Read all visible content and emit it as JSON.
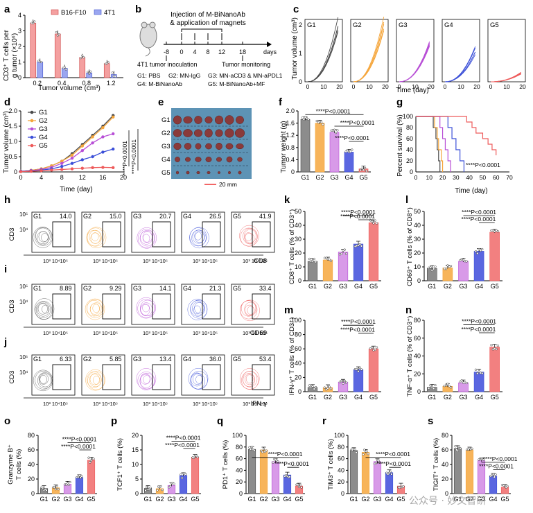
{
  "watermark": "公众号 · 妙文智研",
  "colors": {
    "G1": "#4a4a4a",
    "G2": "#f5a53a",
    "G3": "#b84fd6",
    "G4": "#3b4fd8",
    "G5": "#ee5a5a",
    "G1bar": "#8c8c8c",
    "G2bar": "#f7b45a",
    "G3bar": "#d89ae8",
    "G4bar": "#5a66e0",
    "G5bar": "#f28080",
    "B16": "#f4a0a0",
    "4T1": "#9aa6f0"
  },
  "panels": {
    "a": "a",
    "b": "b",
    "c": "c",
    "d": "d",
    "e": "e",
    "f": "f",
    "g": "g",
    "h": "h",
    "i": "i",
    "j": "j",
    "k": "k",
    "l": "l",
    "m": "m",
    "n": "n",
    "o": "o",
    "p": "p",
    "q": "q",
    "r": "r",
    "s": "s"
  },
  "a": {
    "ylabel1": "CD3⁺ T cells per",
    "ylabel2": "g tumor (×10⁶)",
    "xlabel": "Tumor volume (cm³)",
    "categories": [
      "0.2",
      "0.4",
      "0.8",
      "1.2"
    ],
    "yticks": [
      "0",
      "1",
      "2",
      "3",
      "4"
    ],
    "legend": [
      "B16-F10",
      "4T1"
    ],
    "series": [
      {
        "name": "B16-F10",
        "values": [
          3.5,
          2.8,
          1.3,
          0.9
        ]
      },
      {
        "name": "4T1",
        "values": [
          1.0,
          0.6,
          0.3,
          0.2
        ]
      }
    ]
  },
  "b": {
    "title1": "Injection of M-BiNanoAb",
    "title2": "& application of magnets",
    "ticks": [
      "-8",
      "0",
      "4",
      "8",
      "12",
      "18"
    ],
    "days": "days",
    "inoc": "4T1 tumor inoculation",
    "monitor": "Tumor monitoring",
    "legend1a": "G1: PBS",
    "legend1b": "G2: MN-IgG",
    "legend1c": "G3: MN-aCD3 & MN-aPDL1",
    "legend2a": "G4: M-BiNanoAb",
    "legend2b": "G5: M-BiNanoAb+MF"
  },
  "c": {
    "ylabel": "Tumor volume (cm³)",
    "xlabel": "Time (day)",
    "yticks": [
      "0",
      "1",
      "2"
    ],
    "xticks": [
      "0",
      "10",
      "20"
    ],
    "groups": [
      "G1",
      "G2",
      "G3",
      "G4",
      "G5"
    ]
  },
  "d": {
    "ylabel": "Tumor volume (cm³)",
    "xlabel": "Time (day)",
    "xticks": [
      "0",
      "4",
      "8",
      "12",
      "16",
      "20"
    ],
    "yticks": [
      "0",
      "0.5",
      "1.0",
      "1.5",
      "2.0"
    ],
    "legend": [
      "G1",
      "G2",
      "G3",
      "G4",
      "G5"
    ],
    "x": [
      0,
      2,
      4,
      6,
      8,
      10,
      12,
      14,
      16,
      18
    ],
    "series": [
      {
        "name": "G1",
        "values": [
          0.02,
          0.05,
          0.1,
          0.2,
          0.35,
          0.6,
          0.9,
          1.2,
          1.5,
          1.85
        ]
      },
      {
        "name": "G2",
        "values": [
          0.02,
          0.05,
          0.1,
          0.2,
          0.35,
          0.55,
          0.85,
          1.15,
          1.45,
          1.8
        ]
      },
      {
        "name": "G3",
        "values": [
          0.02,
          0.04,
          0.08,
          0.15,
          0.28,
          0.45,
          0.7,
          0.95,
          1.15,
          1.25
        ]
      },
      {
        "name": "G4",
        "values": [
          0.02,
          0.03,
          0.06,
          0.1,
          0.18,
          0.28,
          0.4,
          0.5,
          0.65,
          0.75
        ]
      },
      {
        "name": "G5",
        "values": [
          0.01,
          0.02,
          0.04,
          0.06,
          0.08,
          0.1,
          0.12,
          0.14,
          0.15,
          0.14
        ]
      }
    ],
    "stat1": "****P<0.0001",
    "stat2": "****P<0.0001"
  },
  "e": {
    "rows": [
      "G1",
      "G2",
      "G3",
      "G4",
      "G5"
    ],
    "scale": "20 mm"
  },
  "f": {
    "ylabel": "Tumor weight (g)",
    "yticks": [
      "0",
      "0.4",
      "0.8",
      "1.2",
      "1.6",
      "2.0"
    ],
    "categories": [
      "G1",
      "G2",
      "G3",
      "G4",
      "G5"
    ],
    "values": [
      1.72,
      1.6,
      1.3,
      0.65,
      0.1
    ],
    "stat1": "****P<0.0001",
    "stat2": "****P<0.0001",
    "stat3": "****P<0.0001"
  },
  "g": {
    "ylabel": "Percent survival (%)",
    "xlabel": "Time (day)",
    "xticks": [
      "0",
      "10",
      "20",
      "30",
      "40",
      "50",
      "60",
      "70"
    ],
    "yticks": [
      "0",
      "20",
      "40",
      "60",
      "80",
      "100"
    ],
    "stat": "****P<0.0001"
  },
  "h": {
    "axis_y": "CD3",
    "axis_x": "CD8",
    "groups": [
      "G1",
      "G2",
      "G3",
      "G4",
      "G5"
    ],
    "values": [
      "14.0",
      "15.0",
      "20.7",
      "26.5",
      "41.9"
    ],
    "ylab1": "10⁵",
    "ylab2": "10⁴",
    "xlab": "10³ 10⁴10⁵"
  },
  "i": {
    "axis_y": "CD3",
    "axis_x": "CD69",
    "groups": [
      "G1",
      "G2",
      "G3",
      "G4",
      "G5"
    ],
    "values": [
      "8.89",
      "9.29",
      "14.1",
      "21.3",
      "33.4"
    ],
    "ylab1": "10⁵",
    "ylab2": "10⁴",
    "xlab": "10³ 10⁴10⁵"
  },
  "j": {
    "axis_y": "CD3",
    "axis_x": "IFN-γ",
    "groups": [
      "G1",
      "G2",
      "G3",
      "G4",
      "G5"
    ],
    "values": [
      "6.33",
      "5.85",
      "13.4",
      "36.0",
      "53.4"
    ],
    "ylab1": "10⁵",
    "ylab2": "10⁴",
    "xlab": "10³ 10⁴10⁵"
  },
  "k": {
    "ylabel": "CD8⁺ T cells (% of CD3⁺)",
    "yticks": [
      "0",
      "10",
      "20",
      "30",
      "40",
      "50"
    ],
    "values": [
      14,
      15,
      20.7,
      26.5,
      41.9
    ],
    "stat1": "****P<0.0001",
    "stat2": "****P<0.0001"
  },
  "l": {
    "ylabel": "CD69⁺ T cells (% of CD8⁺)",
    "yticks": [
      "0",
      "10",
      "20",
      "30",
      "40",
      "50"
    ],
    "values": [
      8.9,
      9.3,
      14.1,
      21.3,
      35
    ],
    "stat1": "****P<0.0001",
    "stat2": "****P<0.0001"
  },
  "m": {
    "ylabel": "IFN-γ⁺ T cells (% of CD3⁺)",
    "yticks": [
      "0",
      "20",
      "40",
      "60",
      "80",
      "100"
    ],
    "values": [
      6,
      5.8,
      13.4,
      31,
      60
    ],
    "stat1": "****P<0.0001",
    "stat2": "****P<0.0001"
  },
  "n": {
    "ylabel": "TNF-α⁺ T cells (% of CD3⁺)",
    "yticks": [
      "0",
      "20",
      "40",
      "60",
      "80"
    ],
    "values": [
      5,
      6,
      10,
      22,
      50
    ],
    "stat1": "****P<0.0001",
    "stat2": "****P<0.0001"
  },
  "o": {
    "ylabel1": "Granzyme B⁺",
    "ylabel2": "T cells (%)",
    "yticks": [
      "0",
      "20",
      "40",
      "60",
      "80"
    ],
    "values": [
      7,
      8,
      13,
      22,
      46
    ],
    "stat1": "****P<0.0001",
    "stat2": "****P<0.0001"
  },
  "p": {
    "ylabel": "TCF1⁺ T cells (%)",
    "yticks": [
      "0",
      "5",
      "10",
      "15",
      "20"
    ],
    "values": [
      1.8,
      1.7,
      2.8,
      6.2,
      12.5
    ],
    "stat1": "****P<0.0001",
    "stat2": "****P<0.0001"
  },
  "q": {
    "ylabel": "PD1⁺ T cells (%)",
    "yticks": [
      "0",
      "20",
      "40",
      "60",
      "80",
      "100"
    ],
    "values": [
      76,
      75,
      55,
      32,
      13
    ],
    "stat1": "****P<0.0001",
    "stat2": "****P<0.0001"
  },
  "r": {
    "ylabel": "TIM3⁺ T cells (%)",
    "yticks": [
      "0",
      "20",
      "40",
      "60",
      "80",
      "100"
    ],
    "values": [
      74,
      71,
      55,
      36,
      13
    ],
    "stat1": "****P<0.0001",
    "stat2": "****P<0.0001"
  },
  "s": {
    "ylabel": "TIGIT⁺ T cells (%)",
    "yticks": [
      "0",
      "20",
      "40",
      "60",
      "80"
    ],
    "values": [
      62,
      60,
      45,
      24,
      9
    ],
    "stat1": "****P<0.0001",
    "stat2": "****P<0.0001"
  },
  "groups": [
    "G1",
    "G2",
    "G3",
    "G4",
    "G5"
  ]
}
